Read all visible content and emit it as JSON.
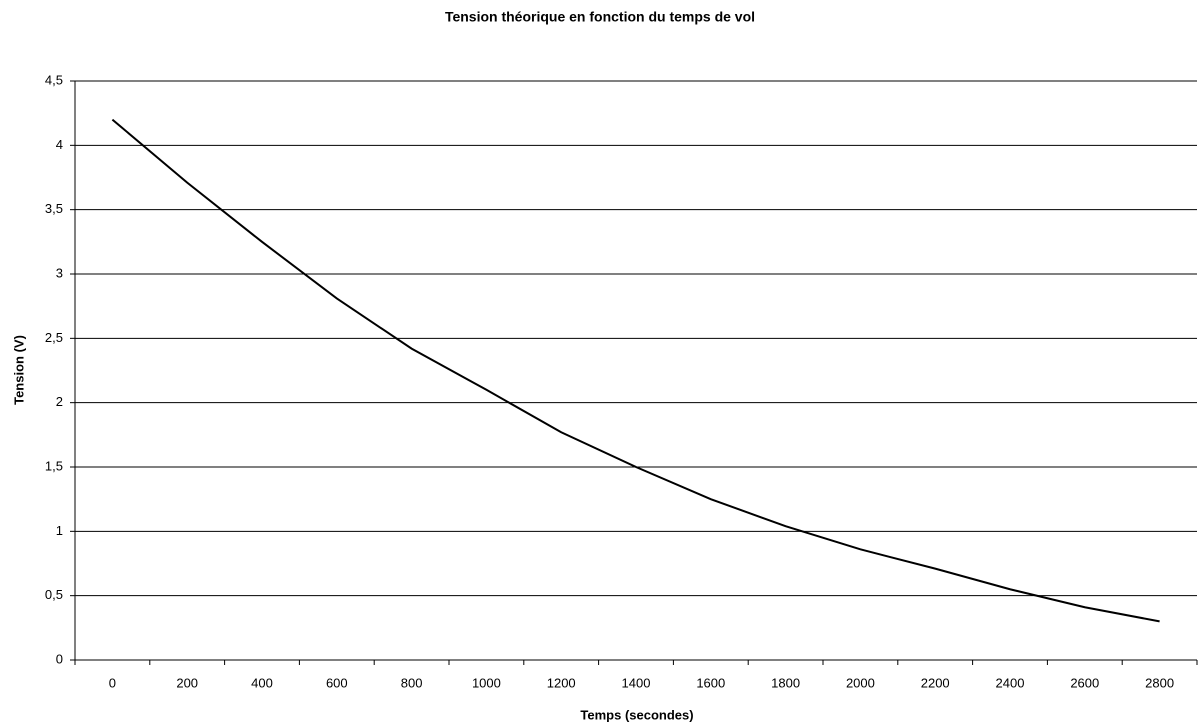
{
  "chart_data": {
    "type": "line",
    "title": "Tension théorique en fonction du temps de vol",
    "x_label": "Temps (secondes)",
    "y_label": "Tension (V)",
    "categories": [
      "0",
      "200",
      "400",
      "600",
      "800",
      "1000",
      "1200",
      "1400",
      "1600",
      "1800",
      "2000",
      "2200",
      "2400",
      "2600",
      "2800"
    ],
    "series": [
      {
        "color": "#000000",
        "values": [
          4.2,
          3.71,
          3.25,
          2.81,
          2.42,
          2.1,
          1.77,
          1.5,
          1.25,
          1.04,
          0.86,
          0.71,
          0.55,
          0.41,
          0.3
        ]
      }
    ],
    "ylim": [
      0,
      4.5
    ],
    "yticks": [
      0,
      {
        "value": 0.5,
        "label": "0,5"
      },
      1,
      {
        "value": 1.5,
        "label": "1,5"
      },
      2,
      {
        "value": 2.5,
        "label": "2,5"
      },
      3,
      {
        "value": 3.5,
        "label": "3,5"
      },
      4,
      {
        "value": 4.5,
        "label": "4,5"
      }
    ],
    "grid": true
  }
}
